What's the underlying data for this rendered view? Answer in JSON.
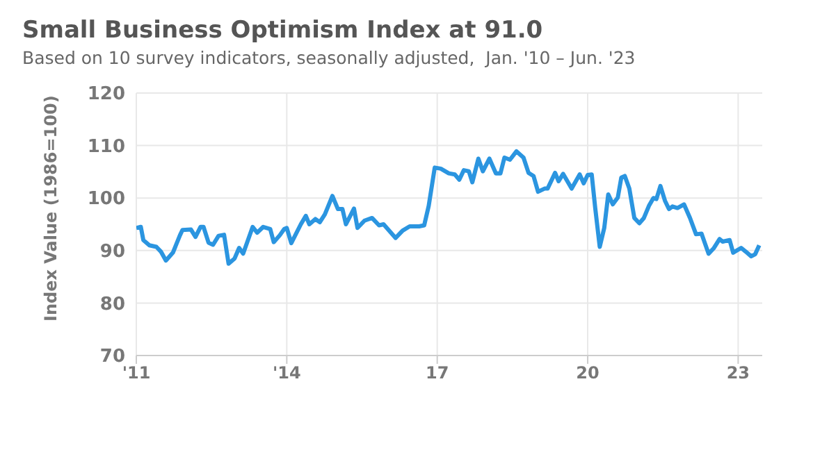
{
  "chart_data": {
    "type": "line",
    "title": "Small Business Optimism Index at 91.0",
    "subtitle": "Based on 10 survey indicators, seasonally adjusted,  Jan. '10 – Jun. '23",
    "ylabel": "Index Value (1986=100)",
    "x": [
      2011.0,
      2011.09,
      2011.14,
      2011.26,
      2011.4,
      2011.49,
      2011.59,
      2011.73,
      2011.87,
      2011.92,
      2012.09,
      2012.18,
      2012.28,
      2012.34,
      2012.44,
      2012.53,
      2012.64,
      2012.75,
      2012.84,
      2012.96,
      2013.05,
      2013.13,
      2013.32,
      2013.41,
      2013.53,
      2013.67,
      2013.74,
      2013.86,
      2013.95,
      2014.0,
      2014.09,
      2014.28,
      2014.38,
      2014.45,
      2014.57,
      2014.66,
      2014.76,
      2014.91,
      2015.02,
      2015.11,
      2015.18,
      2015.34,
      2015.41,
      2015.55,
      2015.7,
      2015.84,
      2015.93,
      2016.17,
      2016.31,
      2016.45,
      2016.64,
      2016.74,
      2016.83,
      2016.95,
      2017.07,
      2017.23,
      2017.35,
      2017.44,
      2017.53,
      2017.63,
      2017.7,
      2017.82,
      2017.91,
      2018.04,
      2018.17,
      2018.26,
      2018.34,
      2018.45,
      2018.58,
      2018.72,
      2018.82,
      2018.92,
      2019.01,
      2019.14,
      2019.2,
      2019.35,
      2019.42,
      2019.51,
      2019.68,
      2019.84,
      2019.92,
      2020.0,
      2020.08,
      2020.15,
      2020.24,
      2020.33,
      2020.41,
      2020.5,
      2020.6,
      2020.67,
      2020.74,
      2020.83,
      2020.93,
      2021.03,
      2021.12,
      2021.22,
      2021.31,
      2021.37,
      2021.45,
      2021.54,
      2021.62,
      2021.69,
      2021.79,
      2021.92,
      2022.04,
      2022.16,
      2022.27,
      2022.41,
      2022.51,
      2022.63,
      2022.69,
      2022.83,
      2022.9,
      2023.06,
      2023.15,
      2023.26,
      2023.34,
      2023.42
    ],
    "series": [
      {
        "color": "#2b95e0",
        "values": [
          94.3,
          94.5,
          92,
          91,
          90.7,
          89.8,
          88.1,
          89.6,
          92.9,
          93.9,
          94,
          92.6,
          94.5,
          94.5,
          91.5,
          91.1,
          92.8,
          93,
          87.5,
          88.5,
          90.5,
          89.4,
          94.5,
          93.4,
          94.5,
          94.1,
          91.6,
          92.9,
          94.1,
          94.3,
          91.4,
          95,
          96.6,
          95,
          96,
          95.4,
          96.9,
          100.4,
          97.9,
          97.9,
          95,
          98,
          94.3,
          95.7,
          96.2,
          94.8,
          95,
          92.4,
          93.8,
          94.6,
          94.6,
          94.8,
          98.5,
          105.8,
          105.6,
          104.7,
          104.5,
          103.5,
          105.3,
          105.1,
          103,
          107.5,
          105.1,
          107.5,
          104.7,
          104.7,
          107.7,
          107.3,
          108.9,
          107.7,
          104.8,
          104.2,
          101.2,
          101.8,
          101.8,
          104.8,
          103.2,
          104.6,
          101.8,
          104.5,
          102.8,
          104.4,
          104.5,
          98.1,
          90.7,
          94.3,
          100.7,
          98.8,
          100.1,
          103.9,
          104.2,
          101.8,
          96.2,
          95.2,
          96.2,
          98.5,
          100,
          99.8,
          102.3,
          99.5,
          97.9,
          98.4,
          98.1,
          98.8,
          96.2,
          93.1,
          93.2,
          89.4,
          90.4,
          92.2,
          91.7,
          92,
          89.6,
          90.5,
          89.8,
          88.9,
          89.3,
          91
        ]
      }
    ],
    "xlim": [
      2011,
      2023.48
    ],
    "xticks": [
      {
        "value": 2011,
        "label": "'11"
      },
      {
        "value": 2014,
        "label": "'14"
      },
      {
        "value": 2017,
        "label": "17"
      },
      {
        "value": 2020,
        "label": "20"
      },
      {
        "value": 2023,
        "label": "23"
      }
    ],
    "ylim": [
      70,
      120
    ],
    "yticks": [
      70,
      80,
      90,
      100,
      110,
      120
    ],
    "grid": true,
    "marker": "none",
    "line_style": "solid"
  }
}
